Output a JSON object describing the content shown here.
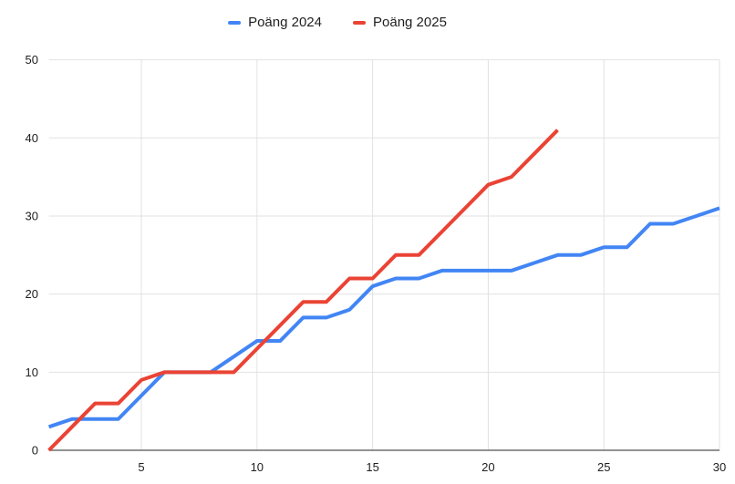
{
  "chart": {
    "background_color": "#ffffff",
    "text_color": "#1f1f1f",
    "tick_label_color": "#202124",
    "gridline_color": "#e2e2e2",
    "axis_line_color": "#6e6e6e"
  },
  "chart_data": {
    "type": "line",
    "title": "",
    "xlabel": "",
    "ylabel": "",
    "xlim": [
      1,
      30
    ],
    "ylim": [
      0,
      50
    ],
    "xticks": [
      5,
      10,
      15,
      20,
      25,
      30
    ],
    "yticks": [
      0,
      10,
      20,
      30,
      40,
      50
    ],
    "grid": true,
    "legend_position": "top",
    "line_width": 4,
    "series": [
      {
        "name": "Poäng 2024",
        "color": "#4285F4",
        "x": [
          1,
          2,
          3,
          4,
          5,
          6,
          7,
          8,
          9,
          10,
          11,
          12,
          13,
          14,
          15,
          16,
          17,
          18,
          19,
          20,
          21,
          22,
          23,
          24,
          25,
          26,
          27,
          28,
          29,
          30
        ],
        "values": [
          3,
          4,
          4,
          4,
          7,
          10,
          10,
          10,
          12,
          14,
          14,
          17,
          17,
          18,
          21,
          22,
          22,
          23,
          23,
          23,
          23,
          24,
          25,
          25,
          26,
          26,
          29,
          29,
          30,
          31
        ]
      },
      {
        "name": "Poäng 2025",
        "color": "#EA4335",
        "x": [
          1,
          2,
          3,
          4,
          5,
          6,
          7,
          8,
          9,
          10,
          11,
          12,
          13,
          14,
          15,
          16,
          17,
          18,
          19,
          20,
          21,
          22,
          23
        ],
        "values": [
          0,
          3,
          6,
          6,
          9,
          10,
          10,
          10,
          10,
          13,
          16,
          19,
          19,
          22,
          22,
          25,
          25,
          28,
          31,
          34,
          35,
          38,
          41
        ]
      }
    ]
  }
}
